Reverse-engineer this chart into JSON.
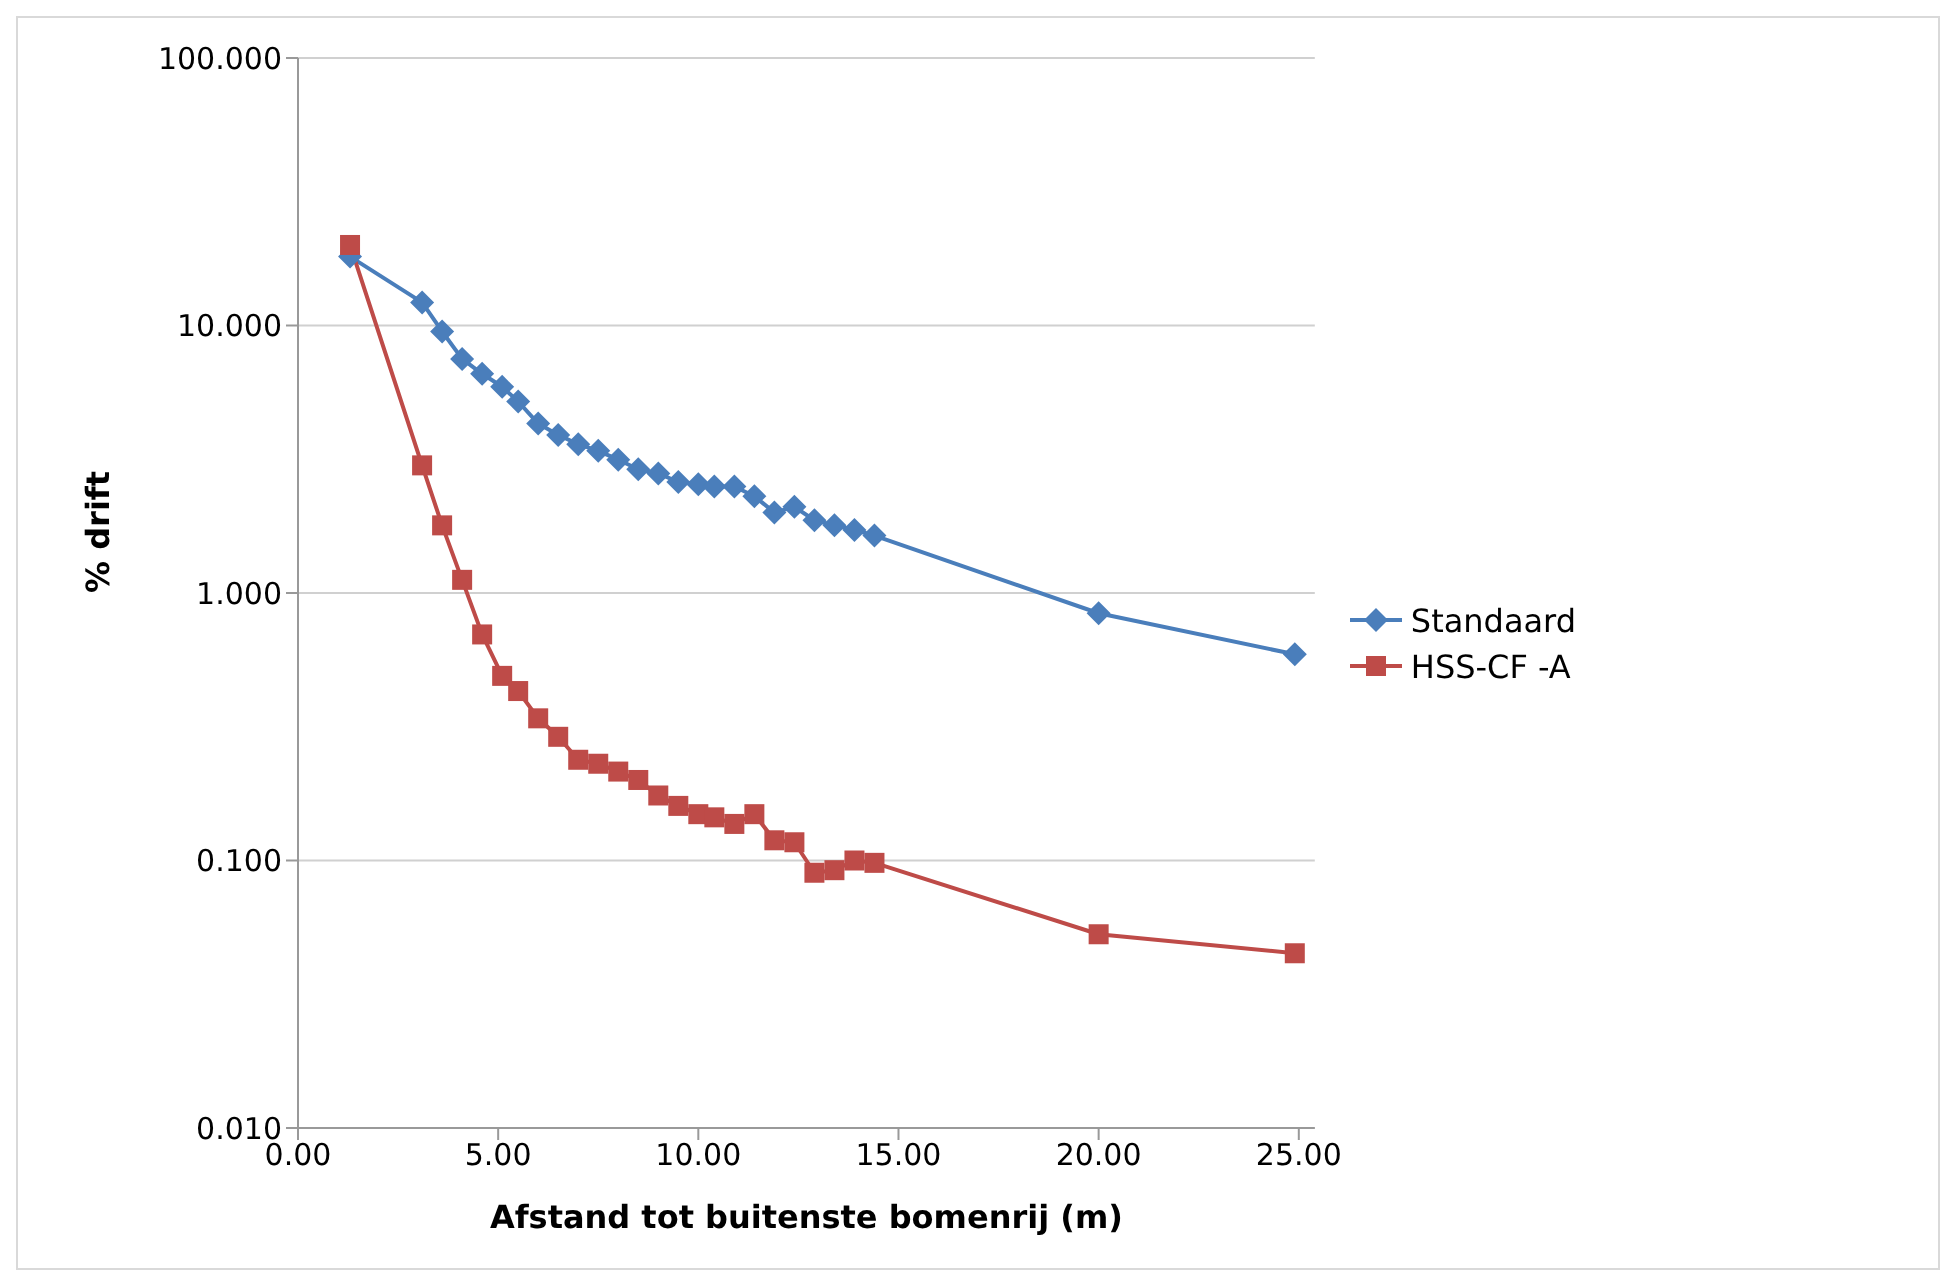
{
  "chart_data": {
    "type": "line",
    "xlabel": "Afstand tot buitenste bomenrij (m)",
    "ylabel": "% drift",
    "log": "y",
    "grid": "y",
    "legend": "right",
    "xlim": [
      0,
      25.4
    ],
    "xticks": [
      {
        "value": 0,
        "label": "0.00"
      },
      {
        "value": 5,
        "label": "5.00"
      },
      {
        "value": 10,
        "label": "10.00"
      },
      {
        "value": 15,
        "label": "15.00"
      },
      {
        "value": 20,
        "label": "20.00"
      },
      {
        "value": 25,
        "label": "25.00"
      }
    ],
    "ylim": [
      0.01,
      100
    ],
    "yticks": [
      {
        "value": 0.01,
        "label": "0.010"
      },
      {
        "value": 0.1,
        "label": "0.100"
      },
      {
        "value": 1,
        "label": "1.000"
      },
      {
        "value": 10,
        "label": "10.000"
      },
      {
        "value": 100,
        "label": "100.000"
      }
    ],
    "series": [
      {
        "name": "Standaard",
        "color": "#4a7ebb",
        "marker": "diamond",
        "x": [
          1.3,
          3.1,
          3.6,
          4.1,
          4.6,
          5.1,
          5.5,
          6.0,
          6.5,
          7.0,
          7.5,
          8.0,
          8.5,
          9.0,
          9.5,
          10.0,
          10.4,
          10.9,
          11.4,
          11.9,
          12.4,
          12.9,
          13.4,
          13.9,
          14.4,
          20.0,
          24.9
        ],
        "values": [
          18.1,
          12.2,
          9.5,
          7.5,
          6.6,
          5.9,
          5.2,
          4.3,
          3.9,
          3.6,
          3.4,
          3.15,
          2.9,
          2.8,
          2.6,
          2.55,
          2.5,
          2.5,
          2.3,
          2.0,
          2.1,
          1.87,
          1.79,
          1.72,
          1.64,
          0.84,
          0.59
        ]
      },
      {
        "name": "HSS-CF -A",
        "color": "#be4b48",
        "marker": "square",
        "x": [
          1.3,
          3.1,
          3.6,
          4.1,
          4.6,
          5.1,
          5.5,
          6.0,
          6.5,
          7.0,
          7.5,
          8.0,
          8.5,
          9.0,
          9.5,
          10.0,
          10.4,
          10.9,
          11.4,
          11.9,
          12.4,
          12.9,
          13.4,
          13.9,
          14.4,
          20.0,
          24.9
        ],
        "values": [
          20,
          3.0,
          1.79,
          1.12,
          0.7,
          0.49,
          0.43,
          0.34,
          0.29,
          0.238,
          0.23,
          0.215,
          0.2,
          0.175,
          0.16,
          0.149,
          0.145,
          0.137,
          0.149,
          0.119,
          0.117,
          0.09,
          0.092,
          0.1,
          0.098,
          0.053,
          0.045
        ]
      }
    ]
  }
}
